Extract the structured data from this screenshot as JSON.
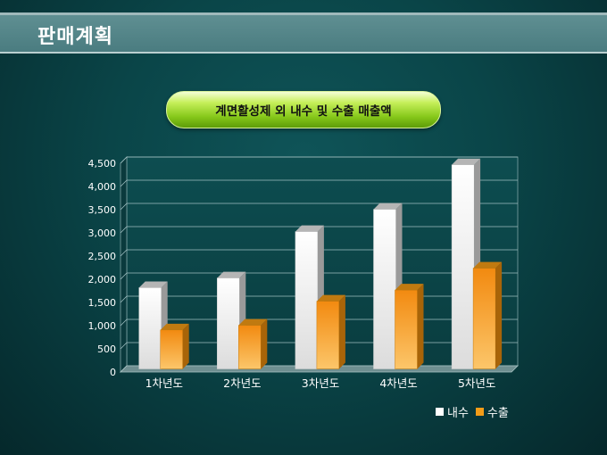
{
  "header": {
    "title": "판매계획"
  },
  "colors": {
    "domestic": "#ffffff",
    "export": "#f39c18",
    "background": "#0a4548"
  },
  "chart_data": {
    "type": "bar",
    "title": "계면활성제 외 내수 및 수출 매출액",
    "categories": [
      "1차년도",
      "2차년도",
      "3차년도",
      "4차년도",
      "5차년도"
    ],
    "series": [
      {
        "name": "내수",
        "values": [
          1750,
          1960,
          2960,
          3440,
          4400
        ]
      },
      {
        "name": "수출",
        "values": [
          840,
          940,
          1460,
          1700,
          2170
        ]
      }
    ],
    "ylim": [
      0,
      4500
    ],
    "yticks": [
      "0",
      "500",
      "1,000",
      "1,500",
      "2,000",
      "2,500",
      "3,000",
      "3,500",
      "4,000",
      "4,500"
    ],
    "grid": true,
    "legend": "bottom-right"
  }
}
